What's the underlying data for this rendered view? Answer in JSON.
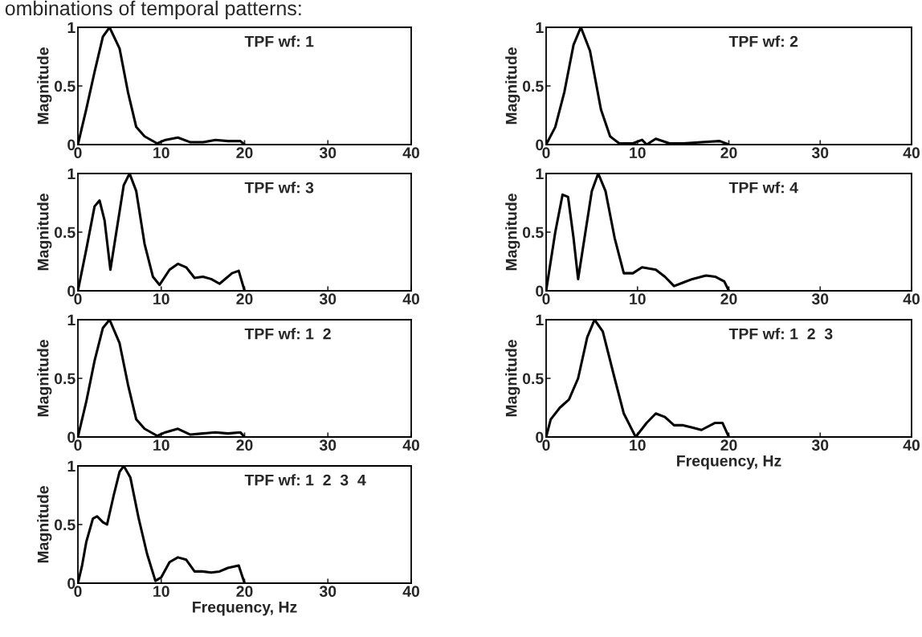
{
  "chart_data": [
    {
      "type": "line",
      "title": "TPF wf: 1",
      "ylabel": "Magnitude",
      "annotations": [
        "ombinations of temporal patterns:"
      ],
      "xlim": [
        0,
        40
      ],
      "ylim": [
        0,
        1
      ],
      "xticks": [
        0,
        10,
        20,
        30,
        40
      ],
      "yticks": [
        0,
        0.5,
        1
      ],
      "grid": false,
      "legend": false,
      "series": [
        {
          "color": "#000000",
          "x": [
            0,
            1,
            2,
            3,
            3.8,
            5,
            6,
            7,
            8,
            9.5,
            10.5,
            12,
            13.5,
            15,
            16.5,
            18,
            19.5,
            20
          ],
          "values": [
            0,
            0.3,
            0.62,
            0.92,
            1,
            0.82,
            0.45,
            0.15,
            0.07,
            0.01,
            0.04,
            0.06,
            0.02,
            0.02,
            0.04,
            0.03,
            0.03,
            0
          ]
        }
      ]
    },
    {
      "type": "line",
      "title": "TPF wf: 2",
      "ylabel": "Magnitude",
      "xlim": [
        0,
        40
      ],
      "ylim": [
        0,
        1
      ],
      "xticks": [
        0,
        10,
        20,
        30,
        40
      ],
      "yticks": [
        0,
        0.5,
        1
      ],
      "grid": false,
      "legend": false,
      "series": [
        {
          "color": "#000000",
          "x": [
            0,
            1,
            2,
            3,
            3.8,
            4.8,
            6,
            7,
            8,
            9.5,
            10.5,
            11,
            12,
            13.5,
            15,
            17,
            19,
            20
          ],
          "values": [
            0,
            0.15,
            0.45,
            0.85,
            1,
            0.8,
            0.3,
            0.07,
            0.01,
            0.01,
            0.04,
            0,
            0.05,
            0.01,
            0.01,
            0.02,
            0.03,
            0
          ]
        }
      ]
    },
    {
      "type": "line",
      "title": "TPF wf: 3",
      "ylabel": "Magnitude",
      "xlim": [
        0,
        40
      ],
      "ylim": [
        0,
        1
      ],
      "xticks": [
        0,
        10,
        20,
        30,
        40
      ],
      "yticks": [
        0,
        0.5,
        1
      ],
      "grid": false,
      "legend": false,
      "series": [
        {
          "color": "#000000",
          "x": [
            0,
            1,
            2,
            2.6,
            3.2,
            3.9,
            4.5,
            5.5,
            6.2,
            7,
            8,
            9,
            9.8,
            11,
            12,
            13,
            14,
            15,
            16,
            17,
            18.5,
            19.3,
            20
          ],
          "values": [
            0,
            0.35,
            0.72,
            0.77,
            0.6,
            0.18,
            0.45,
            0.9,
            1,
            0.85,
            0.4,
            0.12,
            0.05,
            0.18,
            0.23,
            0.2,
            0.11,
            0.12,
            0.1,
            0.06,
            0.15,
            0.17,
            0
          ]
        }
      ]
    },
    {
      "type": "line",
      "title": "TPF wf: 4",
      "ylabel": "Magnitude",
      "xlim": [
        0,
        40
      ],
      "ylim": [
        0,
        1
      ],
      "xticks": [
        0,
        10,
        20,
        30,
        40
      ],
      "yticks": [
        0,
        0.5,
        1
      ],
      "grid": false,
      "legend": false,
      "series": [
        {
          "color": "#000000",
          "x": [
            0,
            1,
            1.8,
            2.4,
            3,
            3.5,
            4.3,
            5,
            5.7,
            6.5,
            7.5,
            8.5,
            9.5,
            10.5,
            12,
            13,
            14,
            15,
            16,
            17.5,
            18.5,
            19.5,
            20
          ],
          "values": [
            0,
            0.5,
            0.82,
            0.8,
            0.45,
            0.1,
            0.5,
            0.85,
            1,
            0.85,
            0.45,
            0.15,
            0.15,
            0.2,
            0.18,
            0.12,
            0.04,
            0.07,
            0.1,
            0.13,
            0.12,
            0.08,
            0
          ]
        }
      ]
    },
    {
      "type": "line",
      "title": "TPF wf: 1  2",
      "ylabel": "Magnitude",
      "xlim": [
        0,
        40
      ],
      "ylim": [
        0,
        1
      ],
      "xticks": [
        0,
        10,
        20,
        30,
        40
      ],
      "yticks": [
        0,
        0.5,
        1
      ],
      "grid": false,
      "legend": false,
      "series": [
        {
          "color": "#000000",
          "x": [
            0,
            1,
            2,
            3,
            3.8,
            5,
            6,
            7,
            8,
            9.5,
            10.5,
            12,
            13.5,
            15,
            16.5,
            18,
            19.5,
            20
          ],
          "values": [
            0,
            0.3,
            0.65,
            0.93,
            1,
            0.8,
            0.45,
            0.15,
            0.07,
            0.01,
            0.04,
            0.07,
            0.02,
            0.03,
            0.04,
            0.03,
            0.04,
            0
          ]
        }
      ]
    },
    {
      "type": "line",
      "title": "TPF wf: 1  2  3",
      "ylabel": "Magnitude",
      "xlabel": "Frequency, Hz",
      "xlim": [
        0,
        40
      ],
      "ylim": [
        0,
        1
      ],
      "xticks": [
        0,
        10,
        20,
        30,
        40
      ],
      "yticks": [
        0,
        0.5,
        1
      ],
      "grid": false,
      "legend": false,
      "series": [
        {
          "color": "#000000",
          "x": [
            0,
            0.5,
            1.5,
            2.5,
            3.5,
            4.5,
            5.3,
            6.2,
            7.5,
            8.5,
            9.8,
            11,
            12,
            13,
            14,
            15,
            16,
            17,
            18.5,
            19.3,
            20
          ],
          "values": [
            0,
            0.15,
            0.25,
            0.32,
            0.5,
            0.85,
            1,
            0.9,
            0.5,
            0.2,
            0,
            0.12,
            0.2,
            0.17,
            0.1,
            0.1,
            0.08,
            0.06,
            0.12,
            0.12,
            0
          ]
        }
      ]
    },
    {
      "type": "line",
      "title": "TPF wf: 1  2  3  4",
      "ylabel": "Magnitude",
      "xlabel": "Frequency, Hz",
      "xlim": [
        0,
        40
      ],
      "ylim": [
        0,
        1
      ],
      "xticks": [
        0,
        10,
        20,
        30,
        40
      ],
      "yticks": [
        0,
        0.5,
        1
      ],
      "grid": false,
      "legend": false,
      "series": [
        {
          "color": "#000000",
          "x": [
            0,
            0.5,
            1,
            1.8,
            2.3,
            3,
            3.5,
            4.3,
            5,
            5.5,
            6.3,
            7.3,
            8.3,
            9.3,
            10,
            11,
            12,
            13,
            14,
            15,
            16,
            17,
            18,
            19.3,
            20
          ],
          "values": [
            0,
            0.15,
            0.35,
            0.55,
            0.57,
            0.52,
            0.5,
            0.75,
            0.95,
            1,
            0.9,
            0.55,
            0.25,
            0.02,
            0.05,
            0.18,
            0.22,
            0.2,
            0.1,
            0.1,
            0.09,
            0.1,
            0.13,
            0.15,
            0
          ]
        }
      ]
    }
  ]
}
